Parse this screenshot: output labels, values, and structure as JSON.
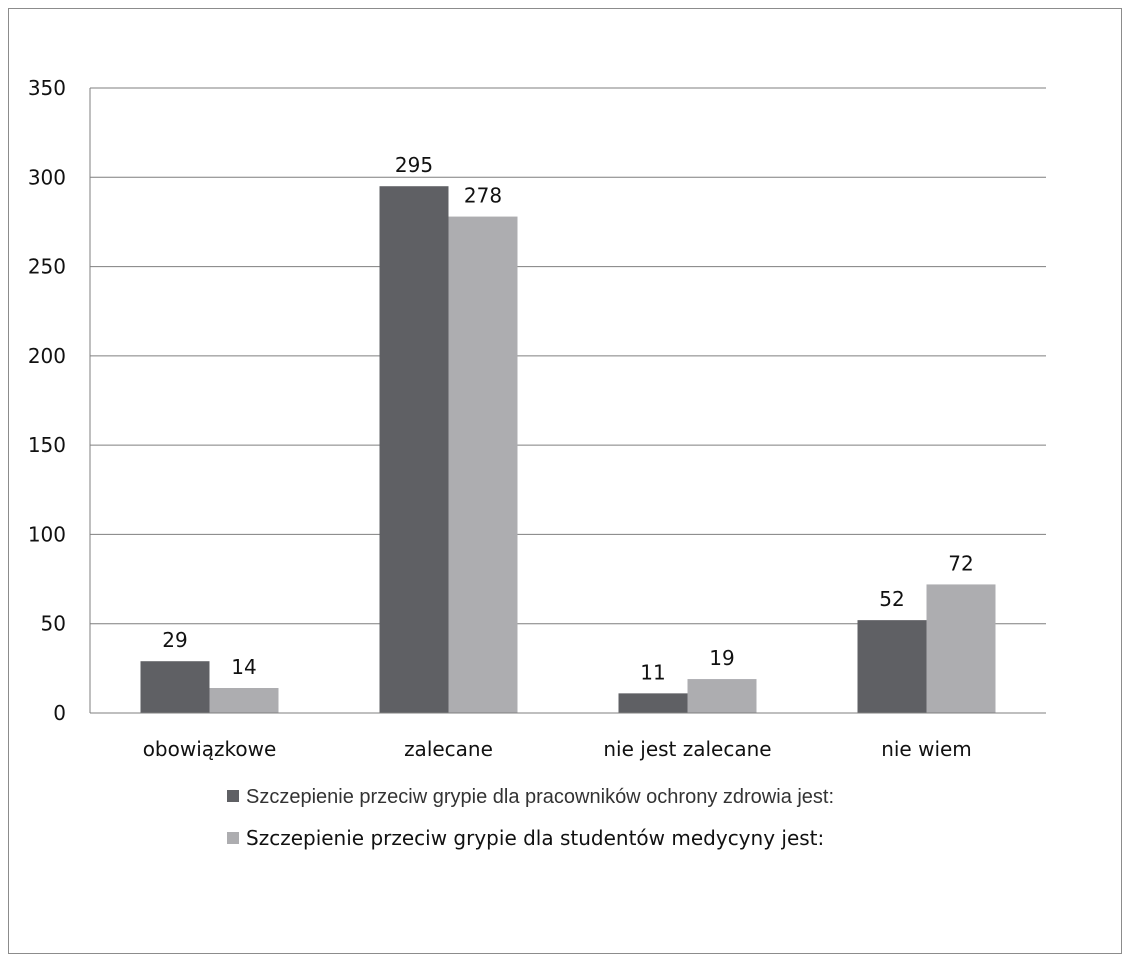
{
  "chart_data": {
    "type": "bar",
    "categories": [
      "obowiązkowe",
      "zalecane",
      "nie jest zalecane",
      "nie wiem"
    ],
    "series": [
      {
        "name": "Szczepienie przeciw grypie dla pracowników ochrony zdrowia jest:",
        "values": [
          29,
          295,
          11,
          52
        ],
        "color": "#5f6064"
      },
      {
        "name": "Szczepienie przeciw grypie dla studentów medycyny  jest:",
        "values": [
          14,
          278,
          19,
          72
        ],
        "color": "#adadb0"
      }
    ],
    "title": "",
    "xlabel": "",
    "ylabel": "",
    "ylim": [
      0,
      350
    ],
    "yticks": [
      0,
      50,
      100,
      150,
      200,
      250,
      300,
      350
    ],
    "grid": true,
    "legend_position": "bottom",
    "gridline_color": "#7f7f7f"
  }
}
